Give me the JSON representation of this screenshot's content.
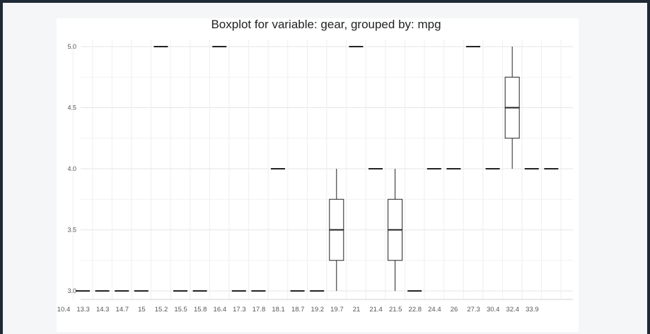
{
  "chart_data": {
    "type": "box",
    "title": "Boxplot for variable: gear, grouped by: mpg",
    "xlabel": "",
    "ylabel": "",
    "ylim": [
      2.95,
      5.05
    ],
    "yticks": [
      "3.0",
      "3.5",
      "4.0",
      "4.5",
      "5.0"
    ],
    "categories": [
      "10.4",
      "13.3",
      "14.3",
      "14.7",
      "15",
      "15.2",
      "15.5",
      "15.8",
      "16.4",
      "17.3",
      "17.8",
      "18.1",
      "18.7",
      "19.2",
      "19.7",
      "21",
      "21.4",
      "21.5",
      "22.8",
      "24.4",
      "26",
      "27.3",
      "30.4",
      "32.4",
      "33.9"
    ],
    "xtick_labels": [
      "10.4",
      "13.3",
      "14.3",
      "14.7",
      "15",
      "15.2",
      "15.5",
      "15.8",
      "16.4",
      "17.3",
      "17.8",
      "18.1",
      "18.7",
      "19.2",
      "19.7",
      "21",
      "21.4",
      "21.5",
      "22.8",
      "24.4",
      "26",
      "27.3",
      "30.4",
      "32.4",
      "33.9"
    ],
    "boxes": [
      {
        "min": 3,
        "q1": 3,
        "median": 3,
        "q3": 3,
        "max": 3
      },
      {
        "min": 3,
        "q1": 3,
        "median": 3,
        "q3": 3,
        "max": 3
      },
      {
        "min": 3,
        "q1": 3,
        "median": 3,
        "q3": 3,
        "max": 3
      },
      {
        "min": 3,
        "q1": 3,
        "median": 3,
        "q3": 3,
        "max": 3
      },
      {
        "min": 5,
        "q1": 5,
        "median": 5,
        "q3": 5,
        "max": 5
      },
      {
        "min": 3,
        "q1": 3,
        "median": 3,
        "q3": 3,
        "max": 3
      },
      {
        "min": 3,
        "q1": 3,
        "median": 3,
        "q3": 3,
        "max": 3
      },
      {
        "min": 5,
        "q1": 5,
        "median": 5,
        "q3": 5,
        "max": 5
      },
      {
        "min": 3,
        "q1": 3,
        "median": 3,
        "q3": 3,
        "max": 3
      },
      {
        "min": 3,
        "q1": 3,
        "median": 3,
        "q3": 3,
        "max": 3
      },
      {
        "min": 4,
        "q1": 4,
        "median": 4,
        "q3": 4,
        "max": 4
      },
      {
        "min": 3,
        "q1": 3,
        "median": 3,
        "q3": 3,
        "max": 3
      },
      {
        "min": 3,
        "q1": 3,
        "median": 3,
        "q3": 3,
        "max": 3
      },
      {
        "min": 3,
        "q1": 3.25,
        "median": 3.5,
        "q3": 3.75,
        "max": 4
      },
      {
        "min": 5,
        "q1": 5,
        "median": 5,
        "q3": 5,
        "max": 5
      },
      {
        "min": 4,
        "q1": 4,
        "median": 4,
        "q3": 4,
        "max": 4
      },
      {
        "min": 3,
        "q1": 3.25,
        "median": 3.5,
        "q3": 3.75,
        "max": 4
      },
      {
        "min": 3,
        "q1": 3,
        "median": 3,
        "q3": 3,
        "max": 3
      },
      {
        "min": 4,
        "q1": 4,
        "median": 4,
        "q3": 4,
        "max": 4
      },
      {
        "min": 4,
        "q1": 4,
        "median": 4,
        "q3": 4,
        "max": 4
      },
      {
        "min": 5,
        "q1": 5,
        "median": 5,
        "q3": 5,
        "max": 5
      },
      {
        "min": 4,
        "q1": 4,
        "median": 4,
        "q3": 4,
        "max": 4
      },
      {
        "min": 4,
        "q1": 4.25,
        "median": 4.5,
        "q3": 4.75,
        "max": 5
      },
      {
        "min": 4,
        "q1": 4,
        "median": 4,
        "q3": 4,
        "max": 4
      },
      {
        "min": 4,
        "q1": 4,
        "median": 4,
        "q3": 4,
        "max": 4
      }
    ],
    "grid": true,
    "legend": "none",
    "colors": {
      "box": "#222222",
      "grid": "#e6e6e6",
      "background": "#ffffff"
    }
  }
}
